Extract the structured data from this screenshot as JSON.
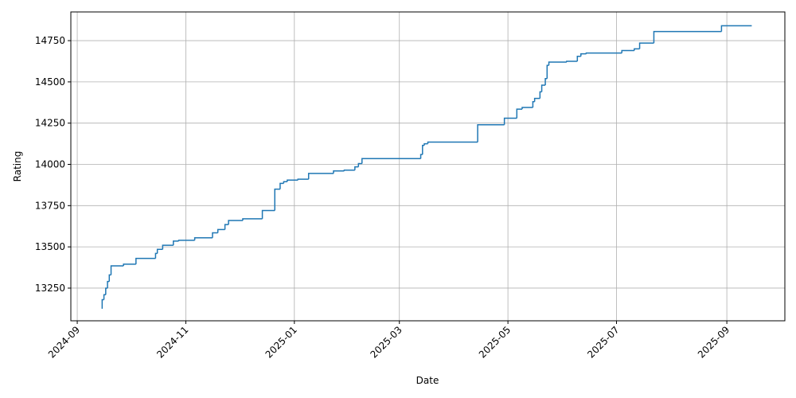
{
  "chart_data": {
    "type": "step",
    "xlabel": "Date",
    "ylabel": "Rating",
    "series": [
      {
        "name": "Rating",
        "color": "#1f77b4",
        "x": [
          14,
          14,
          15,
          16,
          17,
          18,
          19,
          26,
          33,
          44,
          45,
          48,
          54,
          57,
          66,
          76,
          79,
          83,
          85,
          93,
          104,
          111,
          114,
          116,
          118,
          124,
          130,
          144,
          150,
          156,
          158,
          160,
          193,
          194,
          195,
          197,
          225,
          240,
          247,
          250,
          256,
          257,
          260,
          261,
          263,
          264,
          265,
          275,
          281,
          283,
          286,
          306,
          313,
          316,
          324,
          362,
          379
        ],
        "values": [
          13125,
          13180,
          13210,
          13250,
          13290,
          13330,
          13385,
          13395,
          13430,
          13460,
          13485,
          13510,
          13535,
          13540,
          13555,
          13585,
          13605,
          13635,
          13660,
          13670,
          13720,
          13850,
          13885,
          13895,
          13905,
          13910,
          13945,
          13960,
          13965,
          13985,
          14005,
          14035,
          14060,
          14115,
          14125,
          14135,
          14240,
          14280,
          14335,
          14345,
          14380,
          14400,
          14440,
          14480,
          14520,
          14600,
          14620,
          14625,
          14655,
          14670,
          14675,
          14690,
          14700,
          14735,
          14805,
          14840,
          14840
        ]
      }
    ],
    "xlim": [
      -3.6,
      397.6
    ],
    "xticks": [
      {
        "value": 0,
        "label": "2024-09"
      },
      {
        "value": 61,
        "label": "2024-11"
      },
      {
        "value": 122,
        "label": "2025-01"
      },
      {
        "value": 181,
        "label": "2025-03"
      },
      {
        "value": 242,
        "label": "2025-05"
      },
      {
        "value": 303,
        "label": "2025-07"
      },
      {
        "value": 365,
        "label": "2025-09"
      }
    ],
    "ylim": [
      13052,
      14924
    ],
    "yticks": [
      13250,
      13500,
      13750,
      14000,
      14250,
      14500,
      14750
    ],
    "grid": true
  }
}
